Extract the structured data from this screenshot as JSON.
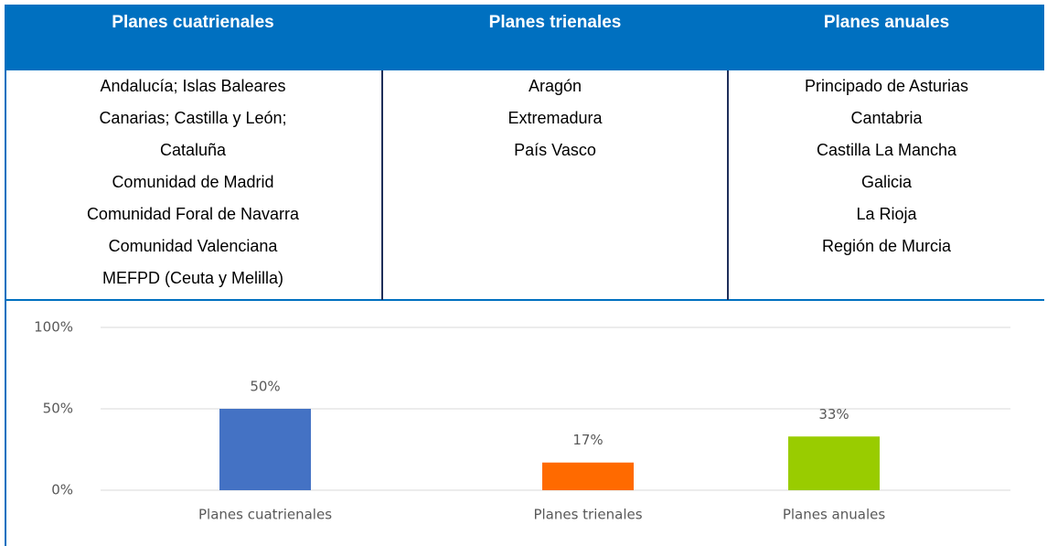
{
  "table": {
    "headers": [
      "Planes cuatrienales",
      "Planes trienales",
      "Planes anuales"
    ],
    "columns": [
      [
        "Andalucía; Islas Baleares",
        "Canarias; Castilla y León;",
        "Cataluña",
        "Comunidad de Madrid",
        "Comunidad Foral de Navarra",
        "Comunidad Valenciana",
        "MEFPD (Ceuta y Melilla)"
      ],
      [
        "Aragón",
        "Extremadura",
        "País Vasco"
      ],
      [
        "Principado de Asturias",
        "Cantabria",
        "Castilla La Mancha",
        "Galicia",
        "La Rioja",
        "Región de Murcia"
      ]
    ]
  },
  "chart_data": {
    "type": "bar",
    "categories": [
      "Planes cuatrienales",
      "Planes trienales",
      "Planes anuales"
    ],
    "values": [
      50,
      17,
      33
    ],
    "value_labels": [
      "50%",
      "17%",
      "33%"
    ],
    "colors": [
      "#4472c4",
      "#ff6a00",
      "#99cc00"
    ],
    "ylim": [
      0,
      100
    ],
    "yticks": [
      {
        "value": 0,
        "label": "0%"
      },
      {
        "value": 50,
        "label": "50%"
      },
      {
        "value": 100,
        "label": "100%"
      }
    ],
    "grid": true
  }
}
